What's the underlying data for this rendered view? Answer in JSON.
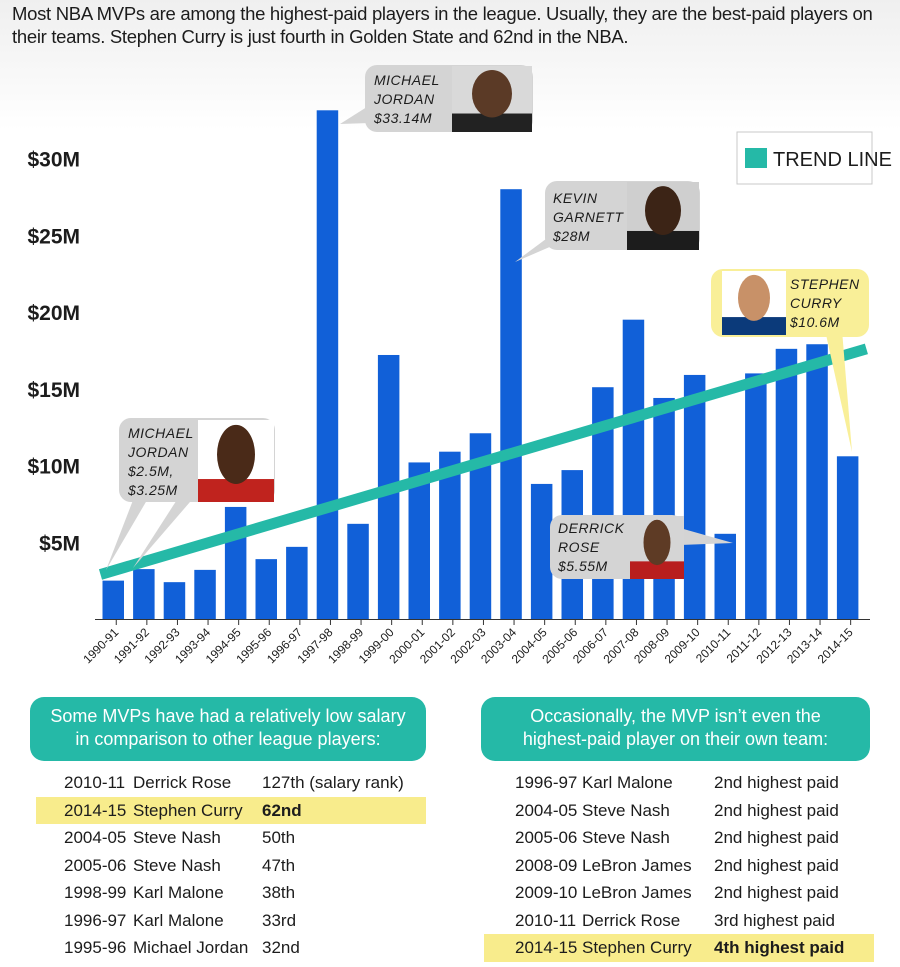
{
  "intro": {
    "line1": "Most NBA MVPs are among the highest-paid players in the league. Usually, they are the best-paid players on",
    "line2": "their teams. Stephen Curry is just fourth in Golden State and 62nd in the NBA."
  },
  "chart_data": {
    "type": "bar",
    "categories": [
      "1990-91",
      "1991-92",
      "1992-93",
      "1993-94",
      "1994-95",
      "1995-96",
      "1996-97",
      "1997-98",
      "1998-99",
      "1999-00",
      "2000-01",
      "2001-02",
      "2002-03",
      "2003-04",
      "2004-05",
      "2005-06",
      "2006-07",
      "2007-08",
      "2008-09",
      "2009-10",
      "2010-11",
      "2011-12",
      "2012-13",
      "2013-14",
      "2014-15"
    ],
    "values": [
      2.5,
      3.25,
      2.4,
      3.2,
      7.3,
      3.9,
      4.7,
      33.14,
      6.2,
      17.2,
      10.2,
      10.9,
      12.1,
      28.0,
      8.8,
      9.7,
      15.1,
      19.5,
      14.4,
      15.9,
      5.55,
      16.0,
      17.6,
      17.9,
      10.6
    ],
    "yticks": [
      "$5M",
      "$10M",
      "$15M",
      "$20M",
      "$25M",
      "$30M"
    ],
    "ytick_values": [
      5,
      10,
      15,
      20,
      25,
      30
    ],
    "ylim": [
      0,
      35
    ],
    "trend_line": {
      "start": 2.9,
      "end": 17.6
    },
    "legend": {
      "label": "TREND LINE",
      "color": "#25b9a7",
      "placement": "top-right"
    },
    "bar_color": "#1160d8",
    "annotations": [
      {
        "lines": [
          "MICHAEL",
          "JORDAN",
          "$2.5M,",
          "$3.25M"
        ]
      },
      {
        "lines": [
          "MICHAEL",
          "JORDAN",
          "$33.14M"
        ]
      },
      {
        "lines": [
          "KEVIN",
          "GARNETT",
          "$28M"
        ]
      },
      {
        "lines": [
          "DERRICK",
          "ROSE",
          "$5.55M"
        ]
      },
      {
        "lines": [
          "STEPHEN",
          "CURRY",
          "$10.6M"
        ]
      }
    ]
  },
  "left_panel": {
    "title_line1": "Some MVPs have had a relatively low salary",
    "title_line2": "in comparison to other league players:",
    "rows": [
      {
        "season": "2010-11",
        "player": "Derrick Rose",
        "rank": "127th (salary rank)",
        "highlight": false
      },
      {
        "season": "2014-15",
        "player": "Stephen Curry",
        "rank": "62nd",
        "highlight": true
      },
      {
        "season": "2004-05",
        "player": "Steve Nash",
        "rank": "50th",
        "highlight": false
      },
      {
        "season": "2005-06",
        "player": "Steve Nash",
        "rank": "47th",
        "highlight": false
      },
      {
        "season": "1998-99",
        "player": "Karl Malone",
        "rank": "38th",
        "highlight": false
      },
      {
        "season": "1996-97",
        "player": "Karl Malone",
        "rank": "33rd",
        "highlight": false
      },
      {
        "season": "1995-96",
        "player": "Michael Jordan",
        "rank": "32nd",
        "highlight": false
      }
    ]
  },
  "right_panel": {
    "title_line1": "Occasionally, the MVP isn’t even the",
    "title_line2": "highest-paid player on their own team:",
    "rows": [
      {
        "season": "1996-97",
        "player": "Karl Malone",
        "rank": "2nd highest paid",
        "highlight": false
      },
      {
        "season": "2004-05",
        "player": "Steve Nash",
        "rank": "2nd highest paid",
        "highlight": false
      },
      {
        "season": "2005-06",
        "player": "Steve Nash",
        "rank": "2nd highest paid",
        "highlight": false
      },
      {
        "season": "2008-09",
        "player": "LeBron James",
        "rank": "2nd highest paid",
        "highlight": false
      },
      {
        "season": "2009-10",
        "player": "LeBron James",
        "rank": "2nd highest paid",
        "highlight": false
      },
      {
        "season": "2010-11",
        "player": "Derrick Rose",
        "rank": "3rd highest paid",
        "highlight": false
      },
      {
        "season": "2014-15",
        "player": "Stephen Curry",
        "rank": "4th highest paid",
        "highlight": true
      }
    ]
  }
}
